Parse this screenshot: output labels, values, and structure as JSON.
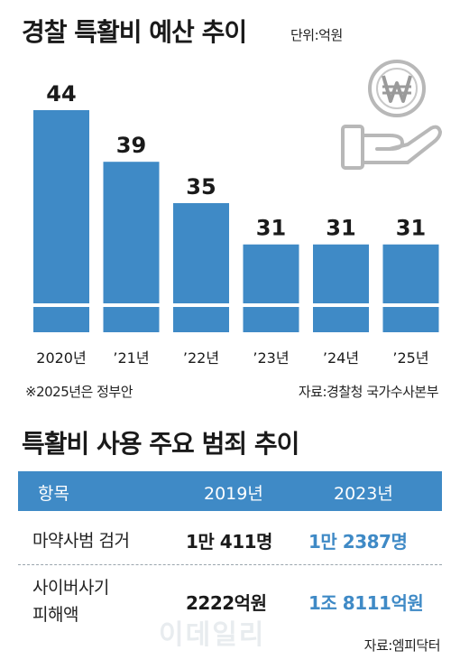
{
  "chart_data": {
    "type": "bar",
    "title": "경찰 특활비 예산 추이",
    "unit": "단위:억원",
    "categories": [
      "2020년",
      "’21년",
      "’22년",
      "’23년",
      "’24년",
      "’25년"
    ],
    "values": [
      44,
      39,
      35,
      31,
      31,
      31
    ],
    "axis_break": true,
    "bar_color": "#3f8ac6",
    "note": "※2025년은 정부안",
    "source": "자료:경찰청 국가수사본부"
  },
  "table": {
    "title": "특활비 사용 주요 범죄 추이",
    "headers": [
      "항목",
      "2019년",
      "2023년"
    ],
    "rows": [
      {
        "label": "마약사범 검거",
        "v2019": "1만 411명",
        "v2023": "1만 2387명"
      },
      {
        "label_lines": [
          "사이버사기",
          "피해액"
        ],
        "v2019": "2222억원",
        "v2023": "1조 8111억원"
      }
    ],
    "source": "자료:엠피닥터",
    "header_color": "#3f8ac6"
  },
  "icons": [
    "won-coin-icon",
    "open-hand-icon"
  ],
  "watermark": "이데일리"
}
